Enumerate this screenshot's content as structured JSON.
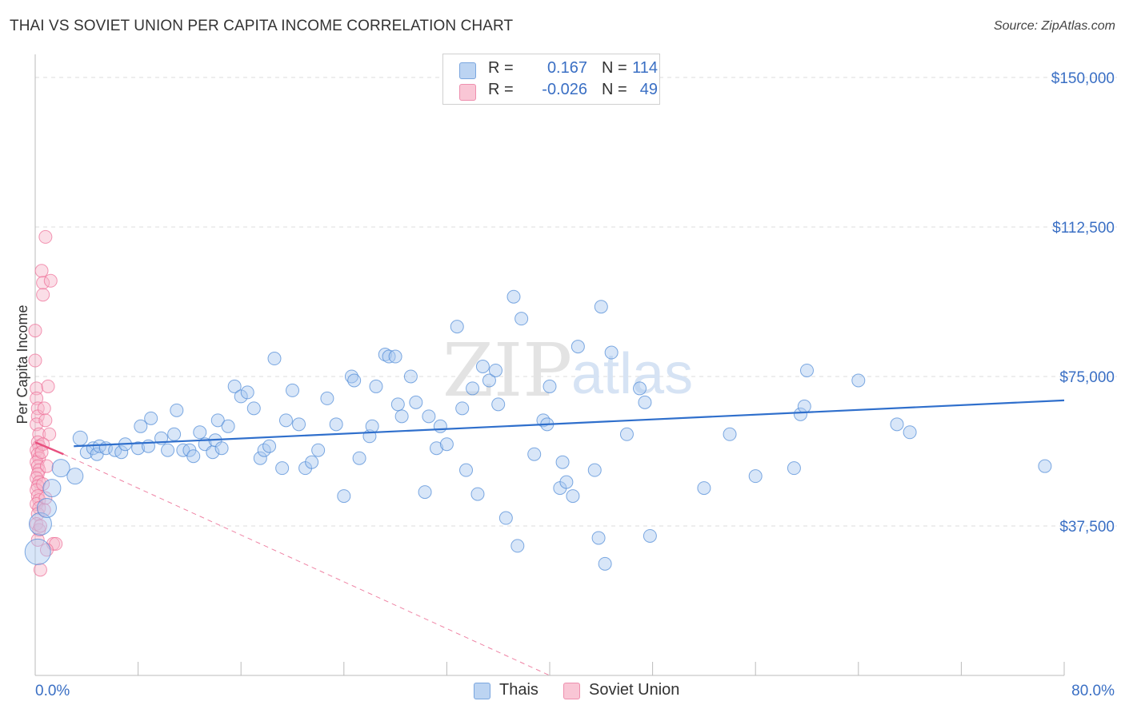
{
  "header": {
    "title": "THAI VS SOVIET UNION PER CAPITA INCOME CORRELATION CHART",
    "source": "Source: ZipAtlas.com"
  },
  "colors": {
    "blue": "#4a87d6",
    "blue_fill": "#a9c8ef",
    "blue_line": "#2f6fcc",
    "pink": "#ee6c96",
    "pink_fill": "#f7b6ca",
    "pink_line": "#e8507f",
    "grid": "#dddddd",
    "axis_text": "#3a6fc4"
  },
  "legend": {
    "series": [
      {
        "r_label": "R =",
        "r_value": "0.167",
        "n_label": "N =",
        "n_value": "114"
      },
      {
        "r_label": "R =",
        "r_value": "-0.026",
        "n_label": "N =",
        "n_value": "49"
      }
    ]
  },
  "bottom_legend": {
    "thais": "Thais",
    "soviet": "Soviet Union"
  },
  "watermark": {
    "zip": "ZIP",
    "atlas": "atlas"
  },
  "chart_data": {
    "type": "scatter",
    "title": "THAI VS SOVIET UNION PER CAPITA INCOME CORRELATION CHART",
    "xlabel": "",
    "ylabel": "Per Capita Income",
    "xlim": [
      0,
      80
    ],
    "ylim": [
      0,
      155000
    ],
    "x_tick_labels": [
      "0.0%",
      "80.0%"
    ],
    "y_ticks": [
      37500,
      75000,
      112500,
      150000
    ],
    "y_tick_labels": [
      "$37,500",
      "$75,000",
      "$112,500",
      "$150,000"
    ],
    "grid": true,
    "series": [
      {
        "name": "Thais",
        "r": 0.167,
        "n": 114,
        "trend": {
          "x": [
            3.0,
            80.0
          ],
          "y": [
            57500,
            69000
          ],
          "style": "solid"
        },
        "points": [
          [
            0.2,
            31000,
            16
          ],
          [
            0.4,
            38000,
            14
          ],
          [
            0.9,
            42000,
            12
          ],
          [
            1.3,
            47000,
            11
          ],
          [
            2.0,
            52000,
            11
          ],
          [
            3.1,
            50000,
            10
          ],
          [
            3.5,
            59500,
            9
          ],
          [
            4.0,
            56000,
            8
          ],
          [
            4.5,
            57000,
            8
          ],
          [
            4.8,
            55500,
            8
          ],
          [
            5.0,
            57500,
            8
          ],
          [
            5.5,
            57000,
            8
          ],
          [
            6.2,
            56500,
            8
          ],
          [
            6.7,
            56000,
            8
          ],
          [
            7.0,
            58000,
            8
          ],
          [
            8.0,
            57000,
            8
          ],
          [
            8.2,
            62500,
            8
          ],
          [
            8.8,
            57500,
            8
          ],
          [
            9.0,
            64500,
            8
          ],
          [
            9.8,
            59500,
            8
          ],
          [
            10.3,
            56500,
            8
          ],
          [
            10.8,
            60500,
            8
          ],
          [
            11.0,
            66500,
            8
          ],
          [
            11.5,
            56500,
            8
          ],
          [
            12.0,
            56500,
            8
          ],
          [
            12.3,
            55000,
            8
          ],
          [
            12.8,
            61000,
            8
          ],
          [
            13.2,
            58000,
            8
          ],
          [
            13.8,
            56000,
            8
          ],
          [
            14.0,
            59000,
            8
          ],
          [
            14.2,
            64000,
            8
          ],
          [
            14.5,
            57000,
            8
          ],
          [
            15.0,
            62500,
            8
          ],
          [
            15.5,
            72500,
            8
          ],
          [
            16.0,
            70000,
            8
          ],
          [
            16.5,
            71000,
            8
          ],
          [
            17.0,
            67000,
            8
          ],
          [
            17.5,
            54500,
            8
          ],
          [
            17.8,
            56500,
            8
          ],
          [
            18.2,
            57500,
            8
          ],
          [
            18.6,
            79500,
            8
          ],
          [
            19.2,
            52000,
            8
          ],
          [
            19.5,
            64000,
            8
          ],
          [
            20.0,
            71500,
            8
          ],
          [
            20.5,
            63000,
            8
          ],
          [
            21.0,
            52000,
            8
          ],
          [
            21.5,
            53500,
            8
          ],
          [
            22.0,
            56500,
            8
          ],
          [
            22.7,
            69500,
            8
          ],
          [
            23.4,
            63000,
            8
          ],
          [
            24.0,
            45000,
            8
          ],
          [
            24.6,
            75000,
            8
          ],
          [
            24.8,
            74000,
            8
          ],
          [
            25.2,
            54500,
            8
          ],
          [
            26.0,
            60000,
            8
          ],
          [
            26.2,
            62500,
            8
          ],
          [
            26.5,
            72500,
            8
          ],
          [
            27.2,
            80500,
            8
          ],
          [
            27.5,
            80000,
            8
          ],
          [
            28.0,
            80000,
            8
          ],
          [
            28.2,
            68000,
            8
          ],
          [
            28.5,
            65000,
            8
          ],
          [
            29.2,
            75000,
            8
          ],
          [
            29.6,
            68500,
            8
          ],
          [
            30.3,
            46000,
            8
          ],
          [
            30.6,
            65000,
            8
          ],
          [
            31.2,
            57000,
            8
          ],
          [
            31.5,
            62500,
            8
          ],
          [
            32.0,
            58000,
            8
          ],
          [
            32.8,
            87500,
            8
          ],
          [
            33.2,
            67000,
            8
          ],
          [
            33.5,
            51500,
            8
          ],
          [
            34.0,
            72000,
            8
          ],
          [
            34.4,
            45500,
            8
          ],
          [
            34.8,
            77500,
            8
          ],
          [
            35.3,
            74000,
            8
          ],
          [
            35.8,
            76500,
            8
          ],
          [
            36.0,
            68000,
            8
          ],
          [
            36.6,
            39500,
            8
          ],
          [
            37.2,
            95000,
            8
          ],
          [
            37.5,
            32500,
            8
          ],
          [
            37.8,
            89500,
            8
          ],
          [
            38.8,
            55500,
            8
          ],
          [
            39.5,
            64000,
            8
          ],
          [
            40.0,
            72500,
            8
          ],
          [
            39.8,
            63000,
            8
          ],
          [
            40.8,
            47000,
            8
          ],
          [
            41.0,
            53500,
            8
          ],
          [
            41.3,
            48500,
            8
          ],
          [
            41.8,
            45000,
            8
          ],
          [
            42.2,
            82500,
            8
          ],
          [
            43.5,
            51500,
            8
          ],
          [
            43.8,
            34500,
            8
          ],
          [
            44.0,
            92500,
            8
          ],
          [
            44.3,
            28000,
            8
          ],
          [
            44.8,
            81000,
            8
          ],
          [
            46.0,
            60500,
            8
          ],
          [
            47.0,
            72000,
            8
          ],
          [
            47.4,
            68500,
            8
          ],
          [
            47.8,
            35000,
            8
          ],
          [
            52.0,
            47000,
            8
          ],
          [
            54.0,
            60500,
            8
          ],
          [
            56.0,
            50000,
            8
          ],
          [
            59.0,
            52000,
            8
          ],
          [
            59.5,
            65500,
            8
          ],
          [
            59.8,
            67500,
            8
          ],
          [
            60.0,
            76500,
            8
          ],
          [
            64.0,
            74000,
            8
          ],
          [
            67.0,
            63000,
            8
          ],
          [
            68.0,
            61000,
            8
          ],
          [
            78.5,
            52500,
            8
          ]
        ]
      },
      {
        "name": "Soviet Union",
        "r": -0.026,
        "n": 49,
        "trend": {
          "x": [
            0.0,
            2.2
          ],
          "y": [
            58500,
            55500
          ],
          "style": "solid"
        },
        "trend_extension": {
          "x": [
            2.2,
            40.0
          ],
          "y": [
            55500,
            0
          ],
          "style": "dashed"
        },
        "points": [
          [
            0.0,
            86500,
            8
          ],
          [
            0.0,
            79000,
            8
          ],
          [
            0.1,
            72000,
            8
          ],
          [
            0.1,
            69500,
            8
          ],
          [
            0.2,
            67000,
            8
          ],
          [
            0.2,
            65000,
            8
          ],
          [
            0.1,
            63000,
            8
          ],
          [
            0.3,
            60500,
            8
          ],
          [
            0.2,
            58500,
            8
          ],
          [
            0.3,
            57500,
            8
          ],
          [
            0.1,
            56500,
            8
          ],
          [
            0.2,
            55500,
            8
          ],
          [
            0.3,
            54500,
            8
          ],
          [
            0.1,
            53500,
            8
          ],
          [
            0.2,
            52500,
            8
          ],
          [
            0.3,
            51500,
            8
          ],
          [
            0.2,
            50500,
            8
          ],
          [
            0.1,
            49500,
            8
          ],
          [
            0.3,
            48500,
            8
          ],
          [
            0.2,
            47500,
            8
          ],
          [
            0.1,
            46500,
            8
          ],
          [
            0.2,
            45000,
            8
          ],
          [
            0.3,
            44000,
            8
          ],
          [
            0.1,
            43000,
            8
          ],
          [
            0.3,
            42000,
            8
          ],
          [
            0.2,
            40500,
            8
          ],
          [
            0.1,
            38000,
            8
          ],
          [
            0.3,
            36500,
            8
          ],
          [
            0.2,
            34000,
            8
          ],
          [
            0.4,
            26500,
            8
          ],
          [
            0.5,
            101500,
            8
          ],
          [
            0.6,
            98500,
            8
          ],
          [
            0.6,
            95500,
            8
          ],
          [
            0.8,
            110000,
            8
          ],
          [
            1.2,
            99000,
            8
          ],
          [
            1.0,
            72500,
            8
          ],
          [
            0.7,
            67000,
            8
          ],
          [
            1.1,
            60500,
            8
          ],
          [
            0.9,
            52500,
            8
          ],
          [
            0.6,
            58000,
            8
          ],
          [
            0.8,
            44500,
            8
          ],
          [
            0.7,
            41500,
            8
          ],
          [
            1.4,
            33000,
            8
          ],
          [
            1.6,
            33000,
            8
          ],
          [
            0.9,
            31500,
            8
          ],
          [
            0.5,
            56000,
            8
          ],
          [
            0.6,
            48000,
            8
          ],
          [
            0.4,
            37500,
            8
          ],
          [
            0.8,
            64000,
            8
          ]
        ]
      }
    ]
  }
}
